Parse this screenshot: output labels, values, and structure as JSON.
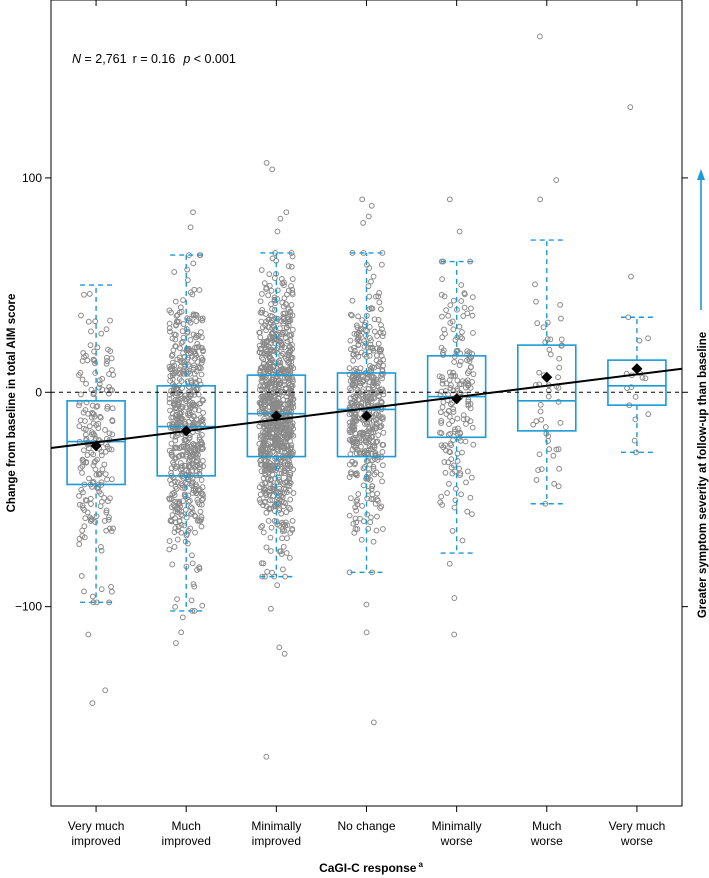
{
  "chart_data": {
    "type": "box",
    "annotation": {
      "n_label": "N",
      "n_value": " = 2,761",
      "r_text": "r = 0.16",
      "p_label": "p",
      "p_value": " < 0.001"
    },
    "xlabel": "CaGI-C response",
    "xlabel_superscript": "a",
    "ylabel": "Change from baseline in total AIM score",
    "right_label": "Greater symptom severity at follow-up than baseline",
    "y_ticks": [
      100,
      0,
      -100
    ],
    "y_tick_labels": [
      "100",
      "0",
      "−100"
    ],
    "ylim": [
      -193,
      183
    ],
    "grid": false,
    "reference_line_y": 0,
    "regression_line": {
      "x_start": 0.5,
      "y_start": -26,
      "x_end": 7.5,
      "y_end": 11
    },
    "categories": [
      {
        "label": [
          "Very much",
          "improved"
        ],
        "n_points": 200,
        "spread": 0.19
      },
      {
        "label": [
          "Much",
          "improved"
        ],
        "n_points": 560,
        "spread": 0.19
      },
      {
        "label": [
          "Minimally",
          "improved"
        ],
        "n_points": 900,
        "spread": 0.19
      },
      {
        "label": [
          "No change"
        ],
        "n_points": 460,
        "spread": 0.19
      },
      {
        "label": [
          "Minimally",
          "worse"
        ],
        "n_points": 180,
        "spread": 0.19
      },
      {
        "label": [
          "Much",
          "worse"
        ],
        "n_points": 50,
        "spread": 0.17
      },
      {
        "label": [
          "Very much",
          "worse"
        ],
        "n_points": 16,
        "spread": 0.13
      }
    ],
    "boxes": [
      {
        "q1": -43,
        "median": -23,
        "q3": -4,
        "mean": -25,
        "whisker_low": -98,
        "whisker_high": 50
      },
      {
        "q1": -39,
        "median": -16,
        "q3": 3,
        "mean": -18,
        "whisker_low": -102,
        "whisker_high": 64
      },
      {
        "q1": -30,
        "median": -10,
        "q3": 8,
        "mean": -11,
        "whisker_low": -86,
        "whisker_high": 65
      },
      {
        "q1": -30,
        "median": -8,
        "q3": 9,
        "mean": -11,
        "whisker_low": -84,
        "whisker_high": 65
      },
      {
        "q1": -21,
        "median": -2,
        "q3": 17,
        "mean": -3,
        "whisker_low": -75,
        "whisker_high": 61
      },
      {
        "q1": -18,
        "median": -4,
        "q3": 22,
        "mean": 7,
        "whisker_low": -52,
        "whisker_high": 71
      },
      {
        "q1": -6,
        "median": 3,
        "q3": 15,
        "mean": 11,
        "whisker_low": -28,
        "whisker_high": 35
      }
    ],
    "outliers": [
      {
        "cat": 1,
        "y": -113
      },
      {
        "cat": 1,
        "y": -139
      },
      {
        "cat": 1,
        "y": -145
      },
      {
        "cat": 2,
        "y": 84
      },
      {
        "cat": 2,
        "y": 77
      },
      {
        "cat": 2,
        "y": -105
      },
      {
        "cat": 2,
        "y": -112
      },
      {
        "cat": 2,
        "y": -117
      },
      {
        "cat": 3,
        "y": 107
      },
      {
        "cat": 3,
        "y": 104
      },
      {
        "cat": 3,
        "y": 84
      },
      {
        "cat": 3,
        "y": 81
      },
      {
        "cat": 3,
        "y": 75
      },
      {
        "cat": 3,
        "y": -90
      },
      {
        "cat": 3,
        "y": -101
      },
      {
        "cat": 3,
        "y": -119
      },
      {
        "cat": 3,
        "y": -122
      },
      {
        "cat": 3,
        "y": -170
      },
      {
        "cat": 4,
        "y": 90
      },
      {
        "cat": 4,
        "y": 87
      },
      {
        "cat": 4,
        "y": 82
      },
      {
        "cat": 4,
        "y": 79
      },
      {
        "cat": 4,
        "y": -99
      },
      {
        "cat": 4,
        "y": -112
      },
      {
        "cat": 4,
        "y": -154
      },
      {
        "cat": 5,
        "y": 90
      },
      {
        "cat": 5,
        "y": 75
      },
      {
        "cat": 5,
        "y": -80
      },
      {
        "cat": 5,
        "y": -96
      },
      {
        "cat": 5,
        "y": -113
      },
      {
        "cat": 6,
        "y": 166
      },
      {
        "cat": 6,
        "y": 99
      },
      {
        "cat": 6,
        "y": 90
      },
      {
        "cat": 7,
        "y": 133
      },
      {
        "cat": 7,
        "y": 54
      }
    ],
    "colors": {
      "box": "#1a9ad6",
      "points": "#8a8a8a",
      "mean_marker": "#000000",
      "regression": "#000000",
      "arrow": "#1a9ad6"
    }
  }
}
